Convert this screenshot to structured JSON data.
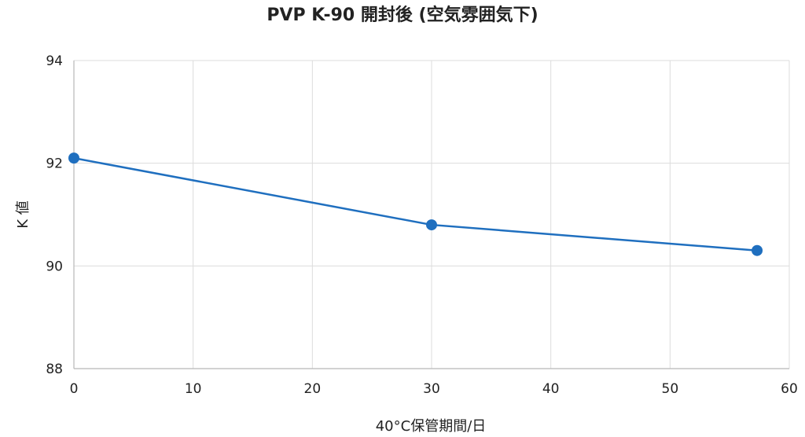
{
  "chart_data": {
    "type": "line",
    "title": "PVP K-90 開封後 (空気雰囲気下)",
    "xlabel": "40°C保管期間/日",
    "ylabel": "K 値",
    "xlim": [
      0,
      60
    ],
    "ylim": [
      88,
      94
    ],
    "xticks": [
      0,
      10,
      20,
      30,
      40,
      50,
      60
    ],
    "yticks": [
      88,
      90,
      92,
      94
    ],
    "grid": true,
    "series": [
      {
        "x": [
          0,
          30,
          57.3
        ],
        "y": [
          92.1,
          90.8,
          90.3
        ],
        "color": "#1f6fbf"
      }
    ]
  }
}
